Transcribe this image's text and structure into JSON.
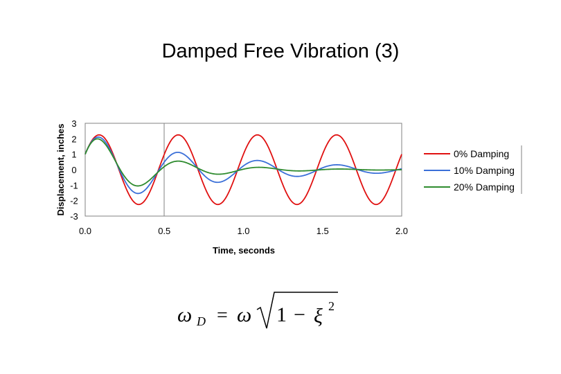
{
  "title": "Damped Free Vibration (3)",
  "chart_data": {
    "type": "line",
    "xlabel": "Time, seconds",
    "ylabel": "Displacement, inches",
    "xlim": [
      0.0,
      2.0
    ],
    "ylim": [
      -3,
      3
    ],
    "x_ticks": [
      "0.0",
      "0.5",
      "1.0",
      "1.5",
      "2.0"
    ],
    "y_ticks": [
      "3",
      "2",
      "1",
      "0",
      "-1",
      "-2",
      "-3"
    ],
    "grid": "vertical at 0.5",
    "legend_position": "right",
    "model": {
      "period_s": 0.5,
      "initial_displacement_in": 1.0,
      "amplitude_in": 2.25
    },
    "series": [
      {
        "name": "0% Damping",
        "damping": 0.0,
        "color": "#e01010"
      },
      {
        "name": "10% Damping",
        "damping": 0.1,
        "color": "#3a6fd8"
      },
      {
        "name": "20% Damping",
        "damping": 0.2,
        "color": "#2e8b2e"
      }
    ]
  },
  "equation": {
    "lhs_symbol": "ω",
    "lhs_subscript": "D",
    "equals": "=",
    "rhs_symbol": "ω",
    "one": "1",
    "minus": "−",
    "xi": "ξ",
    "exponent": "2"
  }
}
